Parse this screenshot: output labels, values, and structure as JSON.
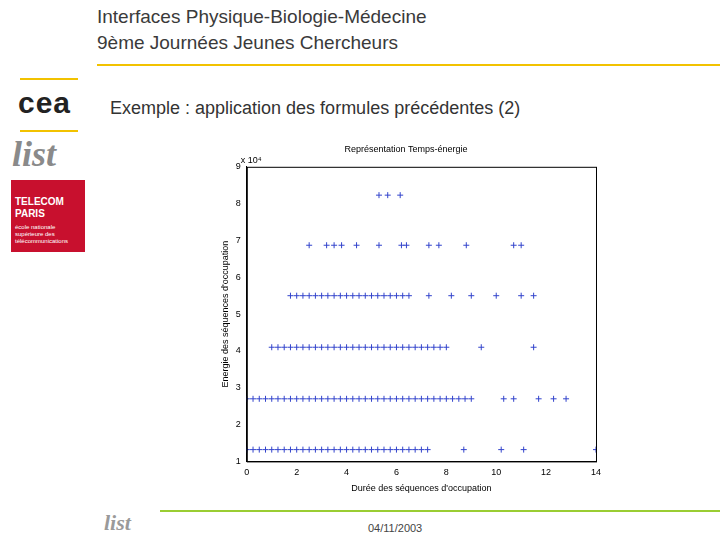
{
  "slide": {
    "header": {
      "line1": "Interfaces Physique-Biologie-Médecine",
      "line2": "9ème Journées Jeunes Chercheurs"
    },
    "subtitle": "Exemple : application des formules précédentes (2)",
    "logos": {
      "cea": "cea",
      "list": "list",
      "telecom": "TELECOM PARIS",
      "telecom_sub": "école nationale supérieure des télécommunications"
    },
    "footer": {
      "logo": "list",
      "date": "04/11/2003"
    }
  },
  "chart_data": {
    "type": "scatter",
    "title": "Représentation Temps-énergie",
    "x_label": "Durée des séquences d'occupation",
    "y_label": "Energie des séquences d'occupation",
    "y_multiplier": "x 10⁴",
    "color": "#3344cc",
    "marker": "plus",
    "grid": false,
    "xlim": [
      0,
      14
    ],
    "xticks": [
      0,
      2,
      4,
      6,
      8,
      10,
      12,
      14
    ],
    "ylim": [
      1,
      9
    ],
    "yticks": [
      1,
      2,
      3,
      4,
      5,
      6,
      7,
      8,
      9
    ],
    "series": [
      {
        "x": [
          0,
          0.25,
          0.5,
          0.75,
          1,
          1.25,
          1.5,
          1.75,
          2,
          2.25,
          2.5,
          2.75,
          3,
          3.25,
          3.5,
          3.75,
          4,
          4.25,
          4.5,
          4.75,
          5,
          5.25,
          5.5,
          5.75,
          6,
          6.25,
          6.5,
          6.75,
          7,
          7.25,
          8.7,
          10.2,
          11.1,
          14
        ],
        "values": [
          1.32,
          1.32,
          1.32,
          1.32,
          1.32,
          1.32,
          1.32,
          1.32,
          1.32,
          1.32,
          1.32,
          1.32,
          1.32,
          1.32,
          1.32,
          1.32,
          1.32,
          1.32,
          1.32,
          1.32,
          1.32,
          1.32,
          1.32,
          1.32,
          1.32,
          1.32,
          1.32,
          1.32,
          1.32,
          1.32,
          1.32,
          1.32,
          1.32,
          1.32
        ]
      },
      {
        "x": [
          0,
          0.25,
          0.5,
          0.75,
          1,
          1.25,
          1.5,
          1.75,
          2,
          2.25,
          2.5,
          2.75,
          3,
          3.25,
          3.5,
          3.75,
          4,
          4.25,
          4.5,
          4.75,
          5,
          5.25,
          5.5,
          5.75,
          6,
          6.25,
          6.5,
          6.75,
          7,
          7.25,
          7.5,
          7.75,
          8,
          8.25,
          8.5,
          8.75,
          9,
          10.3,
          10.7,
          11.7,
          12.3,
          12.8
        ],
        "values": [
          2.7,
          2.7,
          2.7,
          2.7,
          2.7,
          2.7,
          2.7,
          2.7,
          2.7,
          2.7,
          2.7,
          2.7,
          2.7,
          2.7,
          2.7,
          2.7,
          2.7,
          2.7,
          2.7,
          2.7,
          2.7,
          2.7,
          2.7,
          2.7,
          2.7,
          2.7,
          2.7,
          2.7,
          2.7,
          2.7,
          2.7,
          2.7,
          2.7,
          2.7,
          2.7,
          2.7,
          2.7,
          2.7,
          2.7,
          2.7,
          2.7,
          2.7
        ]
      },
      {
        "x": [
          1,
          1.25,
          1.5,
          1.75,
          2,
          2.25,
          2.5,
          2.75,
          3,
          3.25,
          3.5,
          3.75,
          4,
          4.25,
          4.5,
          4.75,
          5,
          5.25,
          5.5,
          5.75,
          6,
          6.25,
          6.5,
          6.75,
          7,
          7.25,
          7.5,
          7.75,
          8,
          9.4,
          11.5
        ],
        "values": [
          4.1,
          4.1,
          4.1,
          4.1,
          4.1,
          4.1,
          4.1,
          4.1,
          4.1,
          4.1,
          4.1,
          4.1,
          4.1,
          4.1,
          4.1,
          4.1,
          4.1,
          4.1,
          4.1,
          4.1,
          4.1,
          4.1,
          4.1,
          4.1,
          4.1,
          4.1,
          4.1,
          4.1,
          4.1,
          4.1,
          4.1
        ]
      },
      {
        "x": [
          1.75,
          2,
          2.25,
          2.5,
          2.75,
          3,
          3.25,
          3.5,
          3.75,
          4,
          4.25,
          4.5,
          4.75,
          5,
          5.25,
          5.5,
          5.75,
          6,
          6.25,
          6.5,
          7.3,
          8.2,
          9,
          10,
          11,
          11.5
        ],
        "values": [
          5.5,
          5.5,
          5.5,
          5.5,
          5.5,
          5.5,
          5.5,
          5.5,
          5.5,
          5.5,
          5.5,
          5.5,
          5.5,
          5.5,
          5.5,
          5.5,
          5.5,
          5.5,
          5.5,
          5.5,
          5.5,
          5.5,
          5.5,
          5.5,
          5.5,
          5.5
        ]
      },
      {
        "x": [
          2.5,
          3.2,
          3.5,
          3.8,
          4.4,
          5.3,
          6.2,
          6.4,
          7.3,
          7.7,
          8.8,
          10.7,
          11
        ],
        "values": [
          6.87,
          6.87,
          6.87,
          6.87,
          6.87,
          6.87,
          6.87,
          6.87,
          6.87,
          6.87,
          6.87,
          6.87,
          6.87
        ]
      },
      {
        "x": [
          5.3,
          5.65,
          6.15
        ],
        "values": [
          8.23,
          8.23,
          8.23
        ]
      }
    ]
  }
}
